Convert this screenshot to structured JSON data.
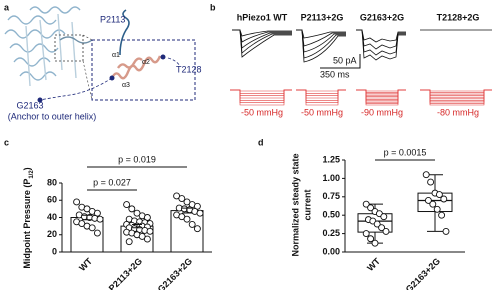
{
  "figure": {
    "panel_a": {
      "letter": "a",
      "labels": [
        "P2113",
        "T2128",
        "G2163",
        "(Anchor to outer helix)"
      ],
      "helix_labels": [
        "α1",
        "α2",
        "α3"
      ]
    },
    "panel_b": {
      "letter": "b",
      "titles": [
        "hPiezo1 WT",
        "P2113+2G",
        "G2163+2G",
        "T2128+2G"
      ],
      "scale_current": "50 pA",
      "scale_time": "350 ms",
      "pressures": [
        "-50 mmHg",
        "-50 mmHg",
        "-90 mmHg",
        "-80 mmHg"
      ]
    }
  },
  "chart_data": [
    {
      "type": "bar",
      "letter": "c",
      "y_label": "Midpoint Pressure (P",
      "y_label_sub": "1/2",
      "y_label_end": ")",
      "categories": [
        "WT",
        "P2113+2G",
        "G2163+2G"
      ],
      "values": [
        40,
        30,
        48
      ],
      "errors": [
        2.6,
        1.9,
        2.8
      ],
      "points": [
        [
          58,
          52,
          50,
          47,
          45,
          43,
          41,
          40,
          39,
          38,
          35,
          33,
          30,
          28,
          22
        ],
        [
          55,
          50,
          45,
          42,
          40,
          38,
          36,
          35,
          34,
          33,
          32,
          31,
          30,
          30,
          29,
          28,
          27,
          26,
          25,
          24,
          23,
          22,
          20,
          18,
          15,
          12
        ],
        [
          65,
          62,
          58,
          55,
          53,
          51,
          50,
          49,
          47,
          45,
          43,
          41,
          38,
          32,
          27
        ]
      ],
      "annotations": [
        "p = 0.027",
        "p = 0.019"
      ],
      "color": "#ffffff",
      "ylim": [
        0,
        80
      ],
      "yticks": [
        0,
        20,
        40,
        60,
        80
      ]
    },
    {
      "type": "box",
      "letter": "d",
      "y_label_lines": [
        "Normalized steady state",
        "current"
      ],
      "categories": [
        "WT",
        "G2163+2G"
      ],
      "boxes": [
        {
          "min": 0.12,
          "q1": 0.27,
          "median": 0.42,
          "q3": 0.52,
          "max": 0.65
        },
        {
          "min": 0.28,
          "q1": 0.55,
          "median": 0.7,
          "q3": 0.8,
          "max": 1.05
        }
      ],
      "points": [
        [
          0.65,
          0.6,
          0.55,
          0.52,
          0.48,
          0.44,
          0.42,
          0.38,
          0.33,
          0.28,
          0.25,
          0.18,
          0.12
        ],
        [
          1.05,
          0.95,
          0.8,
          0.78,
          0.72,
          0.7,
          0.65,
          0.58,
          0.5,
          0.28
        ]
      ],
      "annotations": [
        "p = 0.0015"
      ],
      "color": "#ffffff",
      "ylim": [
        0,
        1.25
      ],
      "yticks": [
        {
          "value": 0,
          "label": "0.00"
        },
        {
          "value": 0.25,
          "label": "0.25"
        },
        {
          "value": 0.5,
          "label": "0.50"
        },
        {
          "value": 0.75,
          "label": "0.75"
        },
        {
          "value": 1,
          "label": "1.00"
        },
        {
          "value": 1.25,
          "label": "1.25"
        }
      ]
    }
  ]
}
